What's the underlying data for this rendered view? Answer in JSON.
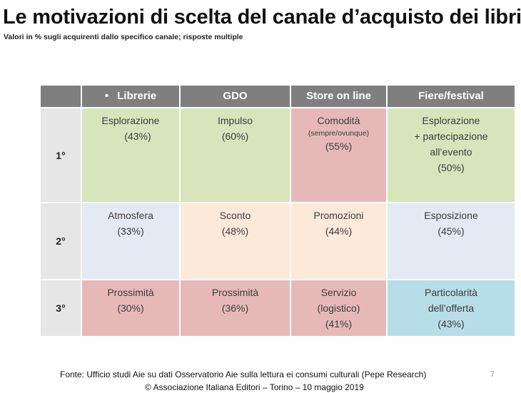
{
  "title": "Le motivazioni di scelta del canale d’acquisto dei libri",
  "subtitle": "Valori in % sugli acquirenti dallo specifico canale; risposte multiple",
  "table": {
    "headers": [
      "Librerie",
      "GDO",
      "Store on line",
      "Fiere/festival"
    ],
    "bullet": "•",
    "rows": [
      {
        "rank": "1°",
        "cells": [
          {
            "label": "Esplorazione",
            "value": "(43%)",
            "color": "#d8e4bc"
          },
          {
            "label": "Impulso",
            "value": "(60%)",
            "color": "#d8e4bc"
          },
          {
            "label": "Comodità",
            "note": "(sempre/ovunque)",
            "value": "(55%)",
            "color": "#e6b9b8"
          },
          {
            "label": "Esplorazione",
            "label2": "+ partecipazione",
            "label3": "all’evento",
            "value": "(50%)",
            "color": "#d8e4bc"
          }
        ]
      },
      {
        "rank": "2°",
        "cells": [
          {
            "label": "Atmosfera",
            "value": "(33%)",
            "color": "#e4eaf4"
          },
          {
            "label": "Sconto",
            "value": "(48%)",
            "color": "#fde9d9"
          },
          {
            "label": "Promozioni",
            "value": "(44%)",
            "color": "#fde9d9"
          },
          {
            "label": "Esposizione",
            "value": "(45%)",
            "color": "#e4eaf4"
          }
        ]
      },
      {
        "rank": "3°",
        "cells": [
          {
            "label": "Prossimità",
            "value": "(30%)",
            "color": "#e6b9b8"
          },
          {
            "label": "Prossimità",
            "value": "(36%)",
            "color": "#e6b9b8"
          },
          {
            "label": "Servizio",
            "label2": "(logistico)",
            "value": "(41%)",
            "color": "#e6b9b8"
          },
          {
            "label": "Particolarità",
            "label2": "dell’offerta",
            "value": "(43%)",
            "color": "#b7dde8"
          }
        ]
      }
    ]
  },
  "footer": {
    "source": "Fonte:  Ufficio studi Aie su  dati  Osservatorio Aie sulla lettura ei consumi culturali (Pepe Research)",
    "copyright": "© Associazione Italiana Editori – Torino – 10 maggio 2019",
    "page_number": "7"
  }
}
